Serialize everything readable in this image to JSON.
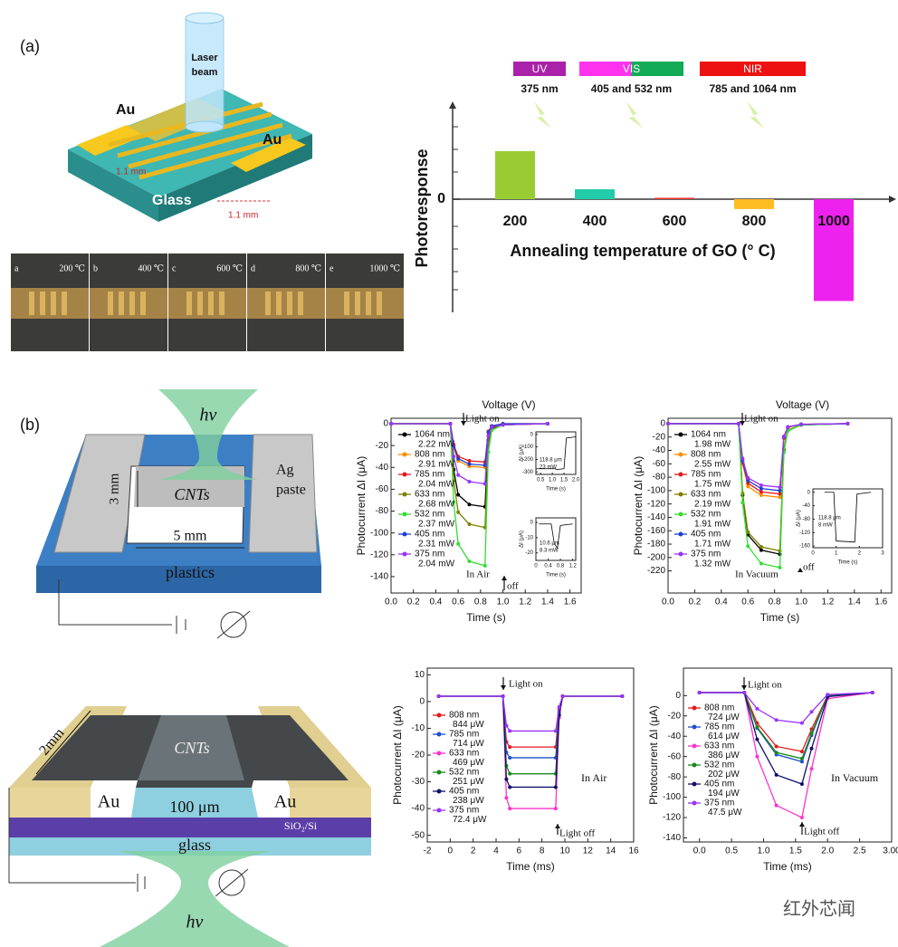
{
  "panel_a": {
    "label": "(a)",
    "laser": [
      "Laser",
      "beam"
    ],
    "au_left": "Au",
    "au_right": "Au",
    "dim_1": "1.1 mm",
    "glass": "Glass",
    "dim_2": "1.1 mm",
    "photos": [
      {
        "letter": "a",
        "temp": "200 ℃"
      },
      {
        "letter": "b",
        "temp": "400 ℃"
      },
      {
        "letter": "c",
        "temp": "600 ℃"
      },
      {
        "letter": "d",
        "temp": "800 ℃"
      },
      {
        "letter": "e",
        "temp": "1000 ℃"
      }
    ]
  },
  "panel_b": {
    "label": "(b)",
    "hv": "hν",
    "dim_h": "3 mm",
    "cnts": "CNTs",
    "ag": [
      "Ag",
      "paste"
    ],
    "dim_w": "5 mm",
    "substrate": "plastics"
  },
  "panel_c": {
    "dim": "2mm",
    "cnts": "CNTs",
    "au_left": "Au",
    "gap": "100 μm",
    "au_right": "Au",
    "layer": "SiO₂/Si",
    "glass": "glass",
    "hv": "hν"
  },
  "watermark": "红外芯闻",
  "chart_data": [
    {
      "type": "bar",
      "categories": [
        "200",
        "400",
        "600",
        "800",
        "1000"
      ],
      "values": [
        1.7,
        0.35,
        0.05,
        -0.35,
        -3.6
      ],
      "colors": [
        "#99cc33",
        "#22ccaa",
        "#ee3333",
        "#ffbb22",
        "#ee22ee"
      ],
      "ylim": [
        -4,
        3.2
      ],
      "yticks": [
        0
      ],
      "ylabel": "Photoresponse",
      "xlabel": "Annealing temperature of GO (° C)",
      "bands": [
        {
          "name": "UV",
          "wavelength": "375 nm",
          "colors": [
            "#aa22aa"
          ]
        },
        {
          "name": "VIS",
          "wavelength": "405 and 532 nm",
          "colors": [
            "#ff33ee",
            "#11aa55"
          ]
        },
        {
          "name": "NIR",
          "wavelength": "785 and 1064 nm",
          "colors": [
            "#ee1111"
          ]
        }
      ]
    },
    {
      "type": "line",
      "top_label": "Voltage (V)",
      "xlabel": "Time (s)",
      "ylabel": "Photocurrent ΔI (μA)",
      "xlim": [
        0,
        1.7
      ],
      "xticks": [
        {
          "value": 0,
          "label": "0.0"
        },
        0.2,
        0.4,
        0.6,
        0.8,
        {
          "value": 1,
          "label": "1.0"
        },
        1.2,
        1.4,
        1.6
      ],
      "ylim": [
        -155,
        5
      ],
      "yticks": [
        0,
        -20,
        -40,
        -60,
        -80,
        -100,
        -120,
        -140
      ],
      "annotations": [
        "Light on",
        "In Air",
        "off"
      ],
      "x": [
        0,
        0.53,
        0.56,
        0.6,
        0.7,
        0.84,
        0.87,
        0.9,
        1.0,
        1.4
      ],
      "series": [
        {
          "name": "1064 nm",
          "power": "2.22 mW",
          "color": "#000000",
          "values": [
            0,
            0,
            -42,
            -65,
            -74,
            -76,
            -15,
            -4,
            -1,
            0
          ]
        },
        {
          "name": "808 nm",
          "power": "2.91 mW",
          "color": "#ff8c00",
          "values": [
            0,
            0,
            -22,
            -34,
            -39,
            -40,
            -8,
            -2,
            -1,
            0
          ]
        },
        {
          "name": "785 nm",
          "power": "2.04 mW",
          "color": "#e41a1c",
          "values": [
            0,
            0,
            -19,
            -30,
            -34,
            -35,
            -7,
            -2,
            0,
            0
          ]
        },
        {
          "name": "633 nm",
          "power": "2.68 mW",
          "color": "#808000",
          "values": [
            0,
            0,
            -52,
            -81,
            -92,
            -95,
            -19,
            -5,
            -1,
            0
          ]
        },
        {
          "name": "532 nm",
          "power": "2.37 mW",
          "color": "#33dd33",
          "values": [
            0,
            0,
            -72,
            -110,
            -126,
            -130,
            -26,
            -6,
            -1,
            0
          ]
        },
        {
          "name": "405 nm",
          "power": "2.31 mW",
          "color": "#1f3fcf",
          "values": [
            0,
            0,
            -21,
            -32,
            -37,
            -38,
            -8,
            -2,
            0,
            0
          ]
        },
        {
          "name": "375 nm",
          "power": "2.04 mW",
          "color": "#9933ff",
          "values": [
            0,
            0,
            -30,
            -47,
            -53,
            -55,
            -11,
            -3,
            -1,
            0
          ]
        }
      ]
    },
    {
      "type": "line",
      "xlabel": "Time (s)",
      "ylabel": "ΔI (μA)",
      "xlim": [
        0.3,
        2.0
      ],
      "xticks": [
        0.5,
        {
          "value": 1,
          "label": "1.0"
        },
        1.5,
        {
          "value": 2,
          "label": "2.0"
        }
      ],
      "ylim": [
        -320,
        20
      ],
      "yticks": [
        0,
        -100,
        -200,
        -300
      ],
      "annotations": [
        "118.8 μm",
        "23 mW"
      ],
      "x": [
        0.3,
        1.1,
        1.2,
        1.5,
        1.6,
        2.0
      ],
      "series": [
        {
          "color": "#000000",
          "values": [
            -275,
            -275,
            -280,
            -275,
            -30,
            -20
          ]
        }
      ]
    },
    {
      "type": "line",
      "xlabel": "Time (s)",
      "ylabel": "ΔI (μA)",
      "xlim": [
        0,
        1.3
      ],
      "xticks": [
        0,
        0.4,
        0.8,
        1.2
      ],
      "ylim": [
        -25,
        3
      ],
      "yticks": [
        0,
        -10,
        -20
      ],
      "annotations": [
        "10.6 μm",
        "8.3 mW"
      ],
      "x": [
        0.1,
        0.5,
        0.6,
        0.7,
        0.8,
        1.2
      ],
      "series": [
        {
          "color": "#000000",
          "values": [
            -1,
            -1,
            -14,
            -17,
            -2,
            -1
          ]
        }
      ]
    },
    {
      "type": "line",
      "top_label": "Voltage (V)",
      "xlabel": "Time (s)",
      "ylabel": "Photocurrent ΔI (μA)",
      "xlim": [
        0,
        1.68
      ],
      "xticks": [
        {
          "value": 0,
          "label": "0.0"
        },
        0.2,
        0.4,
        0.6,
        0.8,
        {
          "value": 1,
          "label": "1.0"
        },
        1.2,
        1.4,
        1.6
      ],
      "ylim": [
        -253,
        8
      ],
      "yticks": [
        0,
        -20,
        -40,
        -60,
        -80,
        -100,
        -120,
        -140,
        -160,
        -180,
        -200,
        -220
      ],
      "annotations": [
        "Light on",
        "In Vacuum",
        "off"
      ],
      "x": [
        0,
        0.53,
        0.56,
        0.6,
        0.7,
        0.84,
        0.87,
        0.9,
        1.0,
        1.35
      ],
      "series": [
        {
          "name": "1064 nm",
          "power": "1.98 mW",
          "color": "#000000",
          "values": [
            0,
            0,
            -107,
            -166,
            -189,
            -195,
            -39,
            -10,
            -2,
            0
          ]
        },
        {
          "name": "808 nm",
          "power": "2.55 mW",
          "color": "#ff8c00",
          "values": [
            0,
            0,
            -60,
            -94,
            -107,
            -110,
            -22,
            -6,
            -1,
            0
          ]
        },
        {
          "name": "785 nm",
          "power": "1.75 mW",
          "color": "#e41a1c",
          "values": [
            0,
            0,
            -58,
            -89,
            -102,
            -105,
            -21,
            -5,
            -1,
            0
          ]
        },
        {
          "name": "633 nm",
          "power": "2.19 mW",
          "color": "#808000",
          "values": [
            0,
            0,
            -104,
            -162,
            -184,
            -190,
            -38,
            -10,
            -2,
            0
          ]
        },
        {
          "name": "532 nm",
          "power": "1.91 mW",
          "color": "#33dd33",
          "values": [
            0,
            0,
            -118,
            -183,
            -209,
            -215,
            -43,
            -11,
            -2,
            0
          ]
        },
        {
          "name": "405 nm",
          "power": "1.71 mW",
          "color": "#1f3fcf",
          "values": [
            0,
            0,
            -55,
            -85,
            -97,
            -100,
            -20,
            -5,
            -1,
            0
          ]
        },
        {
          "name": "375 nm",
          "power": "1.32 mW",
          "color": "#9933ff",
          "values": [
            0,
            0,
            -52,
            -81,
            -92,
            -95,
            -19,
            -5,
            -1,
            0
          ]
        }
      ]
    },
    {
      "type": "line",
      "xlabel": "Time (s)",
      "ylabel": "ΔI (μA)",
      "xlim": [
        0,
        3
      ],
      "xticks": [
        0,
        1,
        2,
        3
      ],
      "ylim": [
        -165,
        10
      ],
      "yticks": [
        0,
        -40,
        -80,
        -120,
        -160
      ],
      "annotations": [
        "118.8 μm",
        "8 mW"
      ],
      "x": [
        0.5,
        0.9,
        1.0,
        1.8,
        1.9,
        2.5
      ],
      "series": [
        {
          "color": "#000000",
          "values": [
            0,
            0,
            -145,
            -148,
            -5,
            0
          ]
        }
      ]
    },
    {
      "type": "line",
      "xlabel": "Time (ms)",
      "ylabel": "Photocurrent ΔI (μA)",
      "xlim": [
        -2,
        16
      ],
      "xticks": [
        -2,
        0,
        2,
        4,
        6,
        8,
        10,
        12,
        14,
        16
      ],
      "ylim": [
        -52.5,
        12.5
      ],
      "yticks": [
        10,
        0,
        -10,
        -20,
        -30,
        -40,
        -50
      ],
      "annotations": [
        "Light on",
        "In Air",
        "Light off"
      ],
      "x": [
        -1,
        4.6,
        4.9,
        5.2,
        9.2,
        9.5,
        9.8,
        15
      ],
      "series": [
        {
          "name": "808 nm",
          "power": "844 μW",
          "color": "#e41a1c",
          "values": [
            2,
            2,
            -15,
            -17,
            -17,
            -3,
            2,
            2
          ]
        },
        {
          "name": "785 nm",
          "power": "714 μW",
          "color": "#1f4fcf",
          "values": [
            2,
            2,
            -19,
            -21,
            -21,
            -4,
            2,
            2
          ]
        },
        {
          "name": "633 nm",
          "power": "469 μW",
          "color": "#ff33cc",
          "values": [
            2,
            2,
            -36,
            -40,
            -40,
            -6,
            2,
            2
          ]
        },
        {
          "name": "532 nm",
          "power": "251 μW",
          "color": "#1a8a1a",
          "values": [
            2,
            2,
            -24,
            -27,
            -27,
            -5,
            2,
            2
          ]
        },
        {
          "name": "405 nm",
          "power": "238 μW",
          "color": "#10106a",
          "values": [
            2,
            2,
            -29,
            -32,
            -32,
            -5,
            2,
            2
          ]
        },
        {
          "name": "375 nm",
          "power": "72.4 μW",
          "color": "#9933ff",
          "values": [
            2,
            2,
            -9,
            -11,
            -11,
            -2,
            2,
            2
          ]
        }
      ]
    },
    {
      "type": "line",
      "xlabel": "Time (ms)",
      "ylabel": "Photocurrent ΔI (μA)",
      "xlim": [
        -0.25,
        3.0
      ],
      "xticks": [
        {
          "value": 0,
          "label": "0.0"
        },
        0.5,
        {
          "value": 1,
          "label": "1.0"
        },
        1.5,
        {
          "value": 2,
          "label": "2.0"
        },
        2.5,
        {
          "value": 3,
          "label": "3.00"
        }
      ],
      "ylim": [
        -144,
        27
      ],
      "yticks": [
        0,
        -20,
        -40,
        -60,
        -80,
        -100,
        -120,
        -140
      ],
      "annotations": [
        "Light on",
        "In Vacuum",
        "Light off"
      ],
      "x": [
        0,
        0.7,
        0.9,
        1.2,
        1.6,
        1.75,
        2.0,
        2.7
      ],
      "series": [
        {
          "name": "808 nm",
          "power": "724 μW",
          "color": "#e41a1c",
          "values": [
            3,
            3,
            -27,
            -50,
            -55,
            -33,
            0,
            3
          ]
        },
        {
          "name": "785 nm",
          "power": "614 μW",
          "color": "#1f4fcf",
          "values": [
            3,
            3,
            -32,
            -58,
            -65,
            -39,
            0,
            3
          ]
        },
        {
          "name": "633 nm",
          "power": "386 μW",
          "color": "#ff33cc",
          "values": [
            3,
            3,
            -60,
            -108,
            -120,
            -72,
            -3,
            3
          ]
        },
        {
          "name": "532 nm",
          "power": "202 μW",
          "color": "#1a8a1a",
          "values": [
            3,
            3,
            -31,
            -56,
            -62,
            -37,
            0,
            3
          ]
        },
        {
          "name": "405 nm",
          "power": "194 μW",
          "color": "#10106a",
          "values": [
            3,
            3,
            -43,
            -78,
            -87,
            -52,
            -1,
            3
          ]
        },
        {
          "name": "375 nm",
          "power": "47.5 μW",
          "color": "#9933ff",
          "values": [
            3,
            3,
            -13,
            -24,
            -27,
            -16,
            1,
            3
          ]
        }
      ]
    }
  ]
}
